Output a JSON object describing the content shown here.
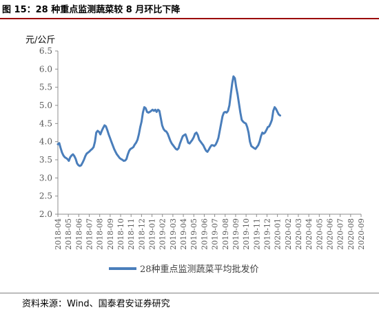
{
  "figure": {
    "title": "图 15：28 种重点监测蔬菜较 8 月环比下降",
    "source": "资料来源：Wind、国泰君安证券研究"
  },
  "colors": {
    "series": "#4a7ebb",
    "axis": "#8c8c8c",
    "header_rule": "#9b0000"
  },
  "chart_data": {
    "type": "line",
    "ylabel": "元/公斤",
    "xlabel": "",
    "ylim": [
      2.0,
      6.5
    ],
    "yticks": [
      "2.0",
      "2.5",
      "3.0",
      "3.5",
      "4.0",
      "4.5",
      "5.0",
      "5.5",
      "6.0",
      "6.5"
    ],
    "x_tick_labels": [
      "2018-04",
      "2018-05",
      "2018-06",
      "2018-07",
      "2018-08",
      "2018-09",
      "2018-10",
      "2018-11",
      "2018-12",
      "2019-01",
      "2019-02",
      "2019-03",
      "2019-04",
      "2019-05",
      "2019-06",
      "2019-07",
      "2019-08",
      "2019-09",
      "2019-10",
      "2019-11",
      "2019-12",
      "2020-01",
      "2020-02",
      "2020-03",
      "2020-04",
      "2020-05",
      "2020-06",
      "2020-07",
      "2020-08",
      "2020-09"
    ],
    "grid": false,
    "legend_position": "bottom-center",
    "series": [
      {
        "name": "28种重点监测蔬菜平均批发价",
        "points": [
          [
            "2018-04-01",
            3.93
          ],
          [
            "2018-04-05",
            3.96
          ],
          [
            "2018-04-09",
            3.82
          ],
          [
            "2018-04-13",
            3.7
          ],
          [
            "2018-04-17",
            3.62
          ],
          [
            "2018-04-21",
            3.57
          ],
          [
            "2018-04-25",
            3.55
          ],
          [
            "2018-04-29",
            3.52
          ],
          [
            "2018-05-03",
            3.47
          ],
          [
            "2018-05-07",
            3.57
          ],
          [
            "2018-05-11",
            3.62
          ],
          [
            "2018-05-15",
            3.65
          ],
          [
            "2018-05-19",
            3.6
          ],
          [
            "2018-05-23",
            3.52
          ],
          [
            "2018-05-27",
            3.4
          ],
          [
            "2018-05-31",
            3.35
          ],
          [
            "2018-06-04",
            3.33
          ],
          [
            "2018-06-08",
            3.35
          ],
          [
            "2018-06-12",
            3.42
          ],
          [
            "2018-06-16",
            3.5
          ],
          [
            "2018-06-20",
            3.6
          ],
          [
            "2018-06-24",
            3.67
          ],
          [
            "2018-06-28",
            3.7
          ],
          [
            "2018-07-02",
            3.73
          ],
          [
            "2018-07-06",
            3.77
          ],
          [
            "2018-07-10",
            3.8
          ],
          [
            "2018-07-14",
            3.85
          ],
          [
            "2018-07-18",
            4.0
          ],
          [
            "2018-07-22",
            4.25
          ],
          [
            "2018-07-26",
            4.3
          ],
          [
            "2018-07-30",
            4.27
          ],
          [
            "2018-08-03",
            4.2
          ],
          [
            "2018-08-07",
            4.3
          ],
          [
            "2018-08-11",
            4.38
          ],
          [
            "2018-08-15",
            4.45
          ],
          [
            "2018-08-19",
            4.42
          ],
          [
            "2018-08-23",
            4.32
          ],
          [
            "2018-08-27",
            4.2
          ],
          [
            "2018-08-31",
            4.1
          ],
          [
            "2018-09-04",
            4.0
          ],
          [
            "2018-09-08",
            3.9
          ],
          [
            "2018-09-12",
            3.8
          ],
          [
            "2018-09-16",
            3.72
          ],
          [
            "2018-09-20",
            3.65
          ],
          [
            "2018-09-24",
            3.6
          ],
          [
            "2018-09-28",
            3.55
          ],
          [
            "2018-10-02",
            3.52
          ],
          [
            "2018-10-06",
            3.5
          ],
          [
            "2018-10-10",
            3.47
          ],
          [
            "2018-10-14",
            3.48
          ],
          [
            "2018-10-18",
            3.52
          ],
          [
            "2018-10-22",
            3.65
          ],
          [
            "2018-10-26",
            3.75
          ],
          [
            "2018-10-30",
            3.8
          ],
          [
            "2018-11-03",
            3.82
          ],
          [
            "2018-11-07",
            3.85
          ],
          [
            "2018-11-11",
            3.92
          ],
          [
            "2018-11-15",
            3.97
          ],
          [
            "2018-11-19",
            4.05
          ],
          [
            "2018-11-23",
            4.2
          ],
          [
            "2018-11-27",
            4.4
          ],
          [
            "2018-12-01",
            4.55
          ],
          [
            "2018-12-05",
            4.8
          ],
          [
            "2018-12-09",
            4.95
          ],
          [
            "2018-12-13",
            4.92
          ],
          [
            "2018-12-17",
            4.82
          ],
          [
            "2018-12-21",
            4.8
          ],
          [
            "2018-12-25",
            4.82
          ],
          [
            "2018-12-29",
            4.85
          ],
          [
            "2019-01-02",
            4.88
          ],
          [
            "2019-01-06",
            4.85
          ],
          [
            "2019-01-10",
            4.88
          ],
          [
            "2019-01-14",
            4.82
          ],
          [
            "2019-01-18",
            4.88
          ],
          [
            "2019-01-22",
            4.85
          ],
          [
            "2019-01-26",
            4.65
          ],
          [
            "2019-01-30",
            4.45
          ],
          [
            "2019-02-03",
            4.35
          ],
          [
            "2019-02-07",
            4.3
          ],
          [
            "2019-02-11",
            4.28
          ],
          [
            "2019-02-15",
            4.22
          ],
          [
            "2019-02-19",
            4.12
          ],
          [
            "2019-02-23",
            4.02
          ],
          [
            "2019-02-27",
            3.95
          ],
          [
            "2019-03-03",
            3.9
          ],
          [
            "2019-03-07",
            3.85
          ],
          [
            "2019-03-11",
            3.8
          ],
          [
            "2019-03-15",
            3.78
          ],
          [
            "2019-03-19",
            3.82
          ],
          [
            "2019-03-23",
            3.95
          ],
          [
            "2019-03-27",
            4.05
          ],
          [
            "2019-03-31",
            4.15
          ],
          [
            "2019-04-04",
            4.18
          ],
          [
            "2019-04-08",
            4.2
          ],
          [
            "2019-04-12",
            4.1
          ],
          [
            "2019-04-16",
            3.97
          ],
          [
            "2019-04-20",
            3.95
          ],
          [
            "2019-04-24",
            4.0
          ],
          [
            "2019-04-28",
            4.05
          ],
          [
            "2019-05-02",
            4.12
          ],
          [
            "2019-05-06",
            4.22
          ],
          [
            "2019-05-10",
            4.25
          ],
          [
            "2019-05-14",
            4.18
          ],
          [
            "2019-05-18",
            4.05
          ],
          [
            "2019-05-22",
            4.0
          ],
          [
            "2019-05-26",
            3.95
          ],
          [
            "2019-05-30",
            3.9
          ],
          [
            "2019-06-03",
            3.82
          ],
          [
            "2019-06-07",
            3.75
          ],
          [
            "2019-06-11",
            3.72
          ],
          [
            "2019-06-15",
            3.78
          ],
          [
            "2019-06-19",
            3.85
          ],
          [
            "2019-06-23",
            3.9
          ],
          [
            "2019-06-27",
            3.9
          ],
          [
            "2019-07-01",
            3.88
          ],
          [
            "2019-07-05",
            3.92
          ],
          [
            "2019-07-09",
            4.0
          ],
          [
            "2019-07-13",
            4.1
          ],
          [
            "2019-07-17",
            4.3
          ],
          [
            "2019-07-21",
            4.5
          ],
          [
            "2019-07-25",
            4.7
          ],
          [
            "2019-07-29",
            4.8
          ],
          [
            "2019-08-02",
            4.82
          ],
          [
            "2019-08-06",
            4.8
          ],
          [
            "2019-08-10",
            4.85
          ],
          [
            "2019-08-14",
            5.0
          ],
          [
            "2019-08-18",
            5.3
          ],
          [
            "2019-08-22",
            5.6
          ],
          [
            "2019-08-26",
            5.8
          ],
          [
            "2019-08-30",
            5.75
          ],
          [
            "2019-09-03",
            5.5
          ],
          [
            "2019-09-07",
            5.3
          ],
          [
            "2019-09-11",
            5.05
          ],
          [
            "2019-09-15",
            4.8
          ],
          [
            "2019-09-19",
            4.6
          ],
          [
            "2019-09-23",
            4.55
          ],
          [
            "2019-09-27",
            4.52
          ],
          [
            "2019-10-01",
            4.5
          ],
          [
            "2019-10-05",
            4.4
          ],
          [
            "2019-10-09",
            4.25
          ],
          [
            "2019-10-13",
            4.0
          ],
          [
            "2019-10-17",
            3.88
          ],
          [
            "2019-10-21",
            3.85
          ],
          [
            "2019-10-25",
            3.82
          ],
          [
            "2019-10-29",
            3.8
          ],
          [
            "2019-11-02",
            3.85
          ],
          [
            "2019-11-06",
            3.9
          ],
          [
            "2019-11-10",
            4.0
          ],
          [
            "2019-11-14",
            4.15
          ],
          [
            "2019-11-18",
            4.25
          ],
          [
            "2019-11-22",
            4.22
          ],
          [
            "2019-11-26",
            4.25
          ],
          [
            "2019-11-30",
            4.32
          ],
          [
            "2019-12-04",
            4.4
          ],
          [
            "2019-12-08",
            4.42
          ],
          [
            "2019-12-12",
            4.5
          ],
          [
            "2019-12-16",
            4.6
          ],
          [
            "2019-12-20",
            4.85
          ],
          [
            "2019-12-24",
            4.95
          ],
          [
            "2019-12-28",
            4.9
          ],
          [
            "2020-01-01",
            4.82
          ],
          [
            "2020-01-05",
            4.75
          ],
          [
            "2020-01-09",
            4.72
          ]
        ]
      }
    ]
  }
}
